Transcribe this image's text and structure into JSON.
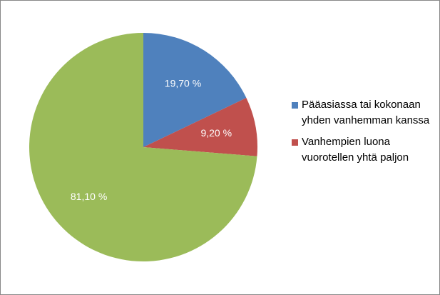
{
  "chart_data": {
    "type": "pie",
    "categories": [
      "Pääasiassa tai kokonaan yhden vanhemman kanssa",
      "Vanhempien luona vuorotellen yhtä paljon",
      null
    ],
    "values": [
      19.7,
      9.2,
      81.1
    ],
    "value_labels": [
      "19,70 %",
      "9,20 %",
      "81,10 %"
    ],
    "colors": [
      "#4f81bd",
      "#c0504d",
      "#9bbb59"
    ],
    "legend": "right"
  }
}
